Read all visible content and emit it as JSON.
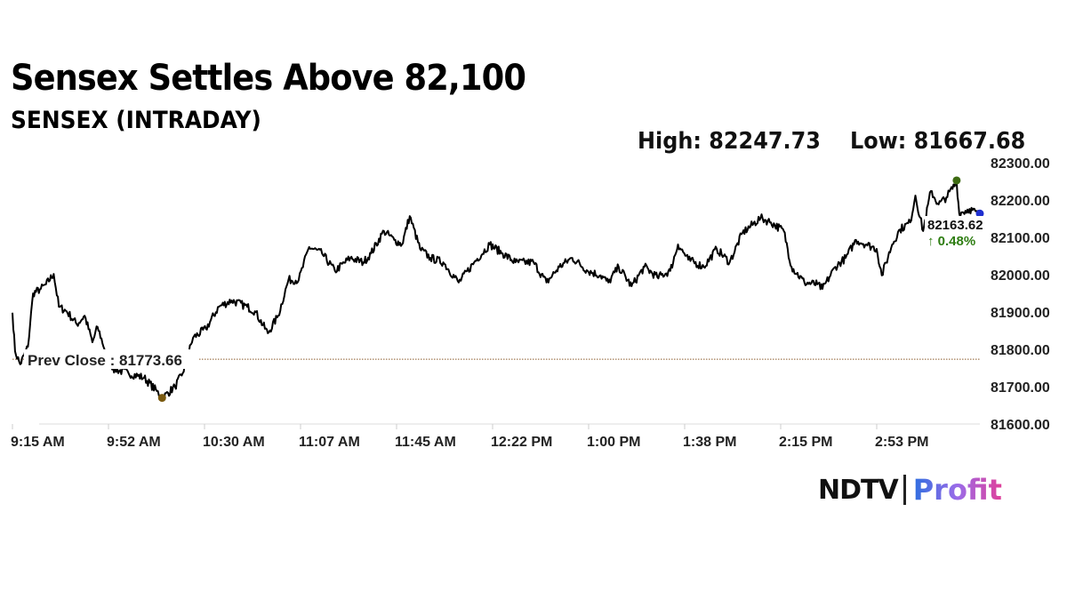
{
  "headline": "Sensex Settles Above 82,100",
  "chart_data": {
    "type": "line",
    "title": "SENSEX (INTRADAY)",
    "high_label": "High: 82247.73",
    "low_label": "Low: 81667.68",
    "high": 82247.73,
    "low": 81667.68,
    "prev_close_label": "Prev Close : 81773.66",
    "prev_close": 81773.66,
    "last_value_label": "82163.62",
    "last_value": 82163.62,
    "change_label": "↑ 0.48%",
    "ylim": [
      81600,
      82300
    ],
    "y_ticks": [
      "81600.00",
      "81700.00",
      "81800.00",
      "81900.00",
      "82000.00",
      "82100.00",
      "82200.00",
      "82300.00"
    ],
    "x_ticks": [
      "9:15 AM",
      "9:52 AM",
      "10:30 AM",
      "11:07 AM",
      "11:45 AM",
      "12:22 PM",
      "1:00 PM",
      "1:38 PM",
      "2:15 PM",
      "2:53 PM"
    ],
    "x_unit": "minutes since 9:15 AM",
    "xlim": [
      0,
      375
    ],
    "series": [
      {
        "name": "SENSEX",
        "x": [
          0,
          1,
          3,
          6,
          8,
          11,
          13,
          16,
          18,
          21,
          25,
          28,
          31,
          33,
          36,
          39,
          45,
          51,
          56,
          58,
          63,
          66,
          70,
          75,
          80,
          85,
          91,
          94,
          99,
          103,
          107,
          111,
          115,
          120,
          125,
          131,
          136,
          139,
          144,
          148,
          151,
          154,
          158,
          162,
          167,
          173,
          179,
          185,
          190,
          195,
          202,
          207,
          212,
          217,
          223,
          228,
          231,
          235,
          240,
          245,
          250,
          255,
          258,
          262,
          268,
          273,
          278,
          283,
          290,
          294,
          299,
          302,
          307,
          312,
          314,
          319,
          323,
          327,
          331,
          335,
          337,
          341,
          344,
          348,
          350,
          353,
          356,
          359,
          362,
          366,
          367,
          371,
          374,
          375
        ],
        "values": [
          81898,
          81795,
          81760,
          81807,
          81950,
          81962,
          81974,
          82002,
          81914,
          81902,
          81867,
          81890,
          81819,
          81860,
          81795,
          81748,
          81736,
          81724,
          81688,
          81669,
          81700,
          81736,
          81831,
          81855,
          81914,
          81931,
          81914,
          81902,
          81843,
          81890,
          81986,
          81986,
          82074,
          82057,
          82010,
          82045,
          82033,
          82057,
          82117,
          82093,
          82081,
          82157,
          82069,
          82045,
          82033,
          81979,
          82033,
          82081,
          82057,
          82033,
          82033,
          81979,
          82021,
          82045,
          82010,
          81998,
          81979,
          82021,
          81969,
          82021,
          81993,
          82010,
          82081,
          82040,
          82021,
          82069,
          82033,
          82112,
          82152,
          82140,
          82117,
          82021,
          81979,
          81974,
          81962,
          82021,
          82045,
          82093,
          82081,
          82069,
          81998,
          82081,
          82121,
          82140,
          82212,
          82117,
          82224,
          82188,
          82207,
          82248,
          82164,
          82176,
          82164,
          82163.62
        ]
      }
    ],
    "colors": {
      "line": "#000000",
      "high_marker": "#3d6b12",
      "low_marker": "#7a5a10",
      "last_marker": "#1f2fd0",
      "prev_close_line": "#8a5a2a",
      "change": "#2e7d12",
      "axis_text": "#222222"
    }
  },
  "logo": {
    "left": "NDTV",
    "right": "Profit"
  }
}
